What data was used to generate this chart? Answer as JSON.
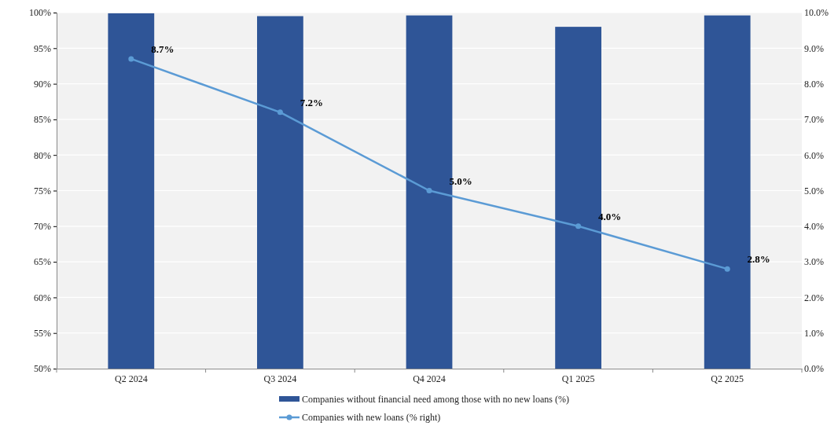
{
  "chart_data": {
    "type": "bar",
    "categories": [
      "Q2 2024",
      "Q3 2024",
      "Q4 2024",
      "Q1 2025",
      "Q2 2025"
    ],
    "series": [
      {
        "name": "Companies without financial need among those with no new loans (%)",
        "color": "#2f5597",
        "values": [
          99.9,
          99.5,
          99.6,
          98.0,
          99.6
        ]
      },
      {
        "name": "Companies with new loans (% right)",
        "type": "line",
        "axis": "y2",
        "color": "#5b9bd5",
        "marker": "circle",
        "values": [
          8.7,
          7.2,
          5.0,
          4.0,
          2.8
        ],
        "value_labels": [
          "8.7%",
          "7.2%",
          "5.0%",
          "4.0%",
          "2.8%"
        ]
      }
    ],
    "ylim": [
      50,
      100
    ],
    "yticks": [
      {
        "value": 50,
        "label": "50%"
      },
      {
        "value": 55,
        "label": "55%"
      },
      {
        "value": 60,
        "label": "60%"
      },
      {
        "value": 65,
        "label": "65%"
      },
      {
        "value": 70,
        "label": "70%"
      },
      {
        "value": 75,
        "label": "75%"
      },
      {
        "value": 80,
        "label": "80%"
      },
      {
        "value": 85,
        "label": "85%"
      },
      {
        "value": 90,
        "label": "90%"
      },
      {
        "value": 95,
        "label": "95%"
      },
      {
        "value": 100,
        "label": "100%"
      }
    ],
    "y2lim": [
      0,
      10
    ],
    "y2ticks": [
      {
        "value": 0,
        "label": "0.0%"
      },
      {
        "value": 1,
        "label": "1.0%"
      },
      {
        "value": 2,
        "label": "2.0%"
      },
      {
        "value": 3,
        "label": "3.0%"
      },
      {
        "value": 4,
        "label": "4.0%"
      },
      {
        "value": 5,
        "label": "5.0%"
      },
      {
        "value": 6,
        "label": "6.0%"
      },
      {
        "value": 7,
        "label": "7.0%"
      },
      {
        "value": 8,
        "label": "8.0%"
      },
      {
        "value": 9,
        "label": "9.0%"
      },
      {
        "value": 10,
        "label": "10.0%"
      }
    ],
    "grid": "y",
    "legend": "bottom"
  }
}
